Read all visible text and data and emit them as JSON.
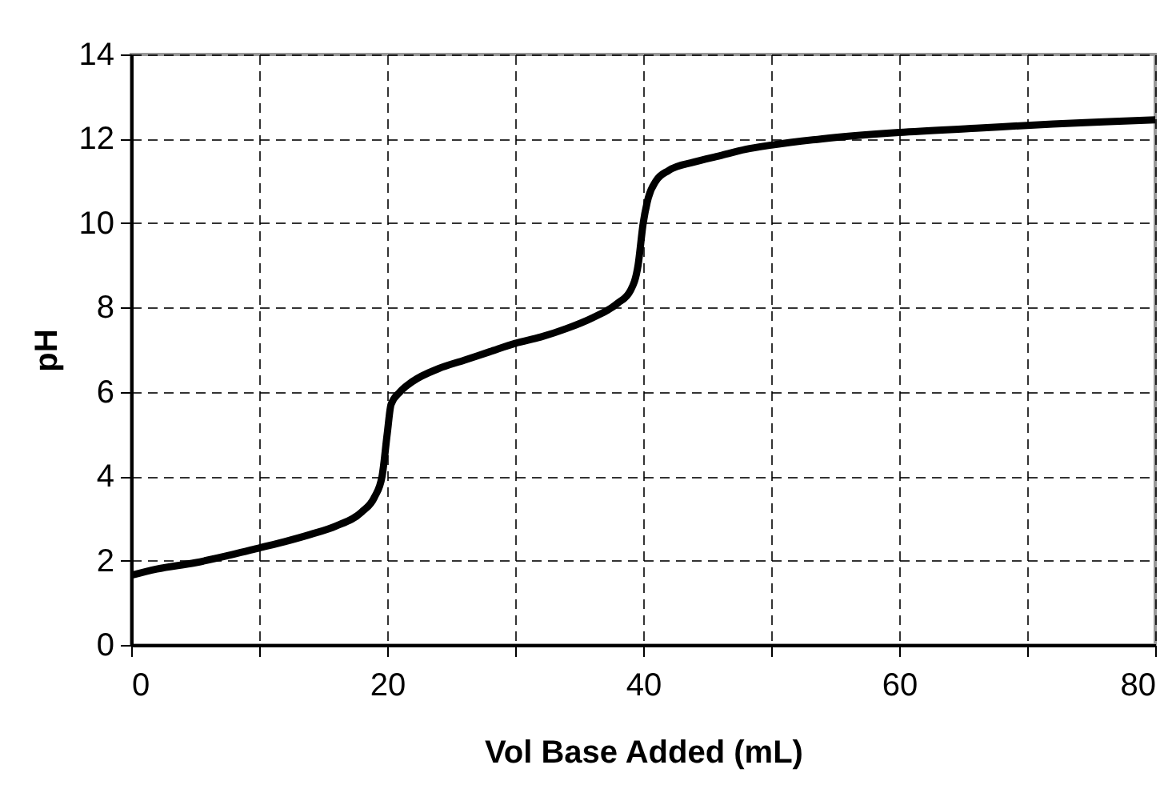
{
  "chart_data": {
    "type": "line",
    "xlabel": "Vol Base Added (mL)",
    "ylabel": "pH",
    "x": [
      0,
      2,
      5,
      8,
      10,
      12,
      14,
      16,
      18,
      19,
      19.6,
      20,
      20.3,
      21,
      22,
      24,
      26,
      28,
      30,
      32,
      34,
      36,
      38,
      39,
      39.6,
      40,
      40.4,
      41,
      42,
      44,
      46,
      48,
      50,
      54,
      60,
      66,
      72,
      76,
      80
    ],
    "series": [
      {
        "color": "#000000",
        "values": [
          1.65,
          1.8,
          1.95,
          2.15,
          2.3,
          2.45,
          2.62,
          2.82,
          3.15,
          3.5,
          4.0,
          5.0,
          5.7,
          6.0,
          6.25,
          6.55,
          6.75,
          6.95,
          7.15,
          7.3,
          7.5,
          7.75,
          8.1,
          8.4,
          9.0,
          10.0,
          10.6,
          11.0,
          11.25,
          11.45,
          11.6,
          11.75,
          11.85,
          12.0,
          12.15,
          12.25,
          12.35,
          12.4,
          12.45
        ]
      }
    ],
    "xlim": [
      0,
      80
    ],
    "xticks": [
      0,
      {
        "value": 10,
        "label": null
      },
      20,
      {
        "value": 30,
        "label": null
      },
      40,
      {
        "value": 50,
        "label": null
      },
      60,
      {
        "value": 70,
        "label": null
      },
      80
    ],
    "ylim": [
      0,
      14
    ],
    "yticks": [
      0,
      2,
      4,
      6,
      8,
      10,
      12,
      14
    ],
    "grid": true,
    "line_style": "solid",
    "marker": "none"
  }
}
